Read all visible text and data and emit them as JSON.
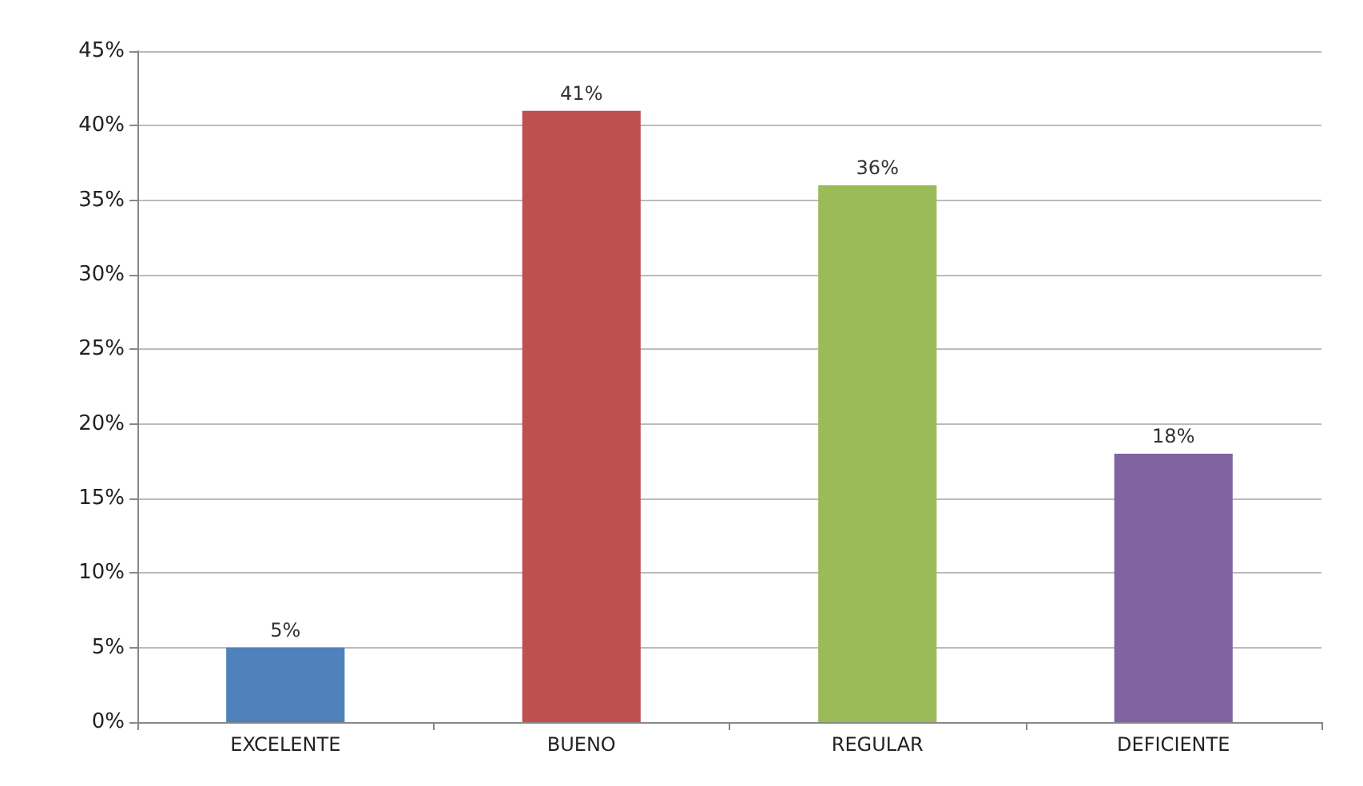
{
  "chart_data": {
    "type": "bar",
    "categories": [
      "EXCELENTE",
      "BUENO",
      "REGULAR",
      "DEFICIENTE"
    ],
    "values": [
      5,
      41,
      36,
      18
    ],
    "colors": [
      "#4f81bd",
      "#c0504d",
      "#9bbb59",
      "#8064a2"
    ],
    "value_labels": [
      "5%",
      "41%",
      "36%",
      "18%"
    ],
    "ylim": [
      0,
      45
    ],
    "yticks": [
      {
        "value": 0,
        "label": "0%"
      },
      {
        "value": 5,
        "label": "5%"
      },
      {
        "value": 10,
        "label": "10%"
      },
      {
        "value": 15,
        "label": "15%"
      },
      {
        "value": 20,
        "label": "20%"
      },
      {
        "value": 25,
        "label": "25%"
      },
      {
        "value": 30,
        "label": "30%"
      },
      {
        "value": 35,
        "label": "35%"
      },
      {
        "value": 40,
        "label": "40%"
      },
      {
        "value": 45,
        "label": "45%"
      }
    ],
    "grid": "y"
  }
}
